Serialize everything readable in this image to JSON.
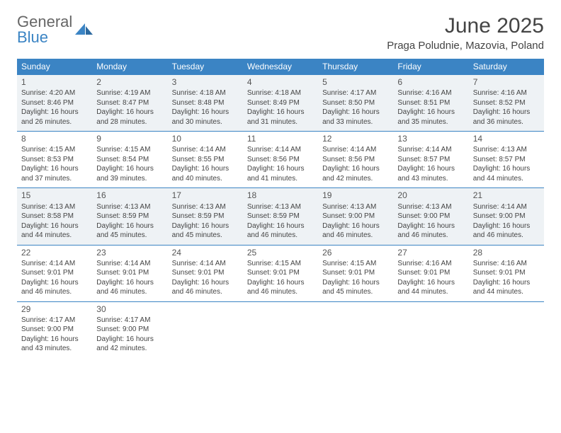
{
  "logo": {
    "line1": "General",
    "line2": "Blue"
  },
  "title": "June 2025",
  "location": "Praga Poludnie, Mazovia, Poland",
  "colors": {
    "header_bg": "#3b84c4",
    "header_text": "#ffffff",
    "row_border": "#3b84c4",
    "shaded_bg": "#eef2f5",
    "body_text": "#444444",
    "logo_gray": "#666666",
    "logo_blue": "#3b84c4"
  },
  "weekdays": [
    "Sunday",
    "Monday",
    "Tuesday",
    "Wednesday",
    "Thursday",
    "Friday",
    "Saturday"
  ],
  "weeks": [
    {
      "shaded": true,
      "days": [
        {
          "n": "1",
          "sr": "4:20 AM",
          "ss": "8:46 PM",
          "dl": "16 hours and 26 minutes."
        },
        {
          "n": "2",
          "sr": "4:19 AM",
          "ss": "8:47 PM",
          "dl": "16 hours and 28 minutes."
        },
        {
          "n": "3",
          "sr": "4:18 AM",
          "ss": "8:48 PM",
          "dl": "16 hours and 30 minutes."
        },
        {
          "n": "4",
          "sr": "4:18 AM",
          "ss": "8:49 PM",
          "dl": "16 hours and 31 minutes."
        },
        {
          "n": "5",
          "sr": "4:17 AM",
          "ss": "8:50 PM",
          "dl": "16 hours and 33 minutes."
        },
        {
          "n": "6",
          "sr": "4:16 AM",
          "ss": "8:51 PM",
          "dl": "16 hours and 35 minutes."
        },
        {
          "n": "7",
          "sr": "4:16 AM",
          "ss": "8:52 PM",
          "dl": "16 hours and 36 minutes."
        }
      ]
    },
    {
      "shaded": false,
      "days": [
        {
          "n": "8",
          "sr": "4:15 AM",
          "ss": "8:53 PM",
          "dl": "16 hours and 37 minutes."
        },
        {
          "n": "9",
          "sr": "4:15 AM",
          "ss": "8:54 PM",
          "dl": "16 hours and 39 minutes."
        },
        {
          "n": "10",
          "sr": "4:14 AM",
          "ss": "8:55 PM",
          "dl": "16 hours and 40 minutes."
        },
        {
          "n": "11",
          "sr": "4:14 AM",
          "ss": "8:56 PM",
          "dl": "16 hours and 41 minutes."
        },
        {
          "n": "12",
          "sr": "4:14 AM",
          "ss": "8:56 PM",
          "dl": "16 hours and 42 minutes."
        },
        {
          "n": "13",
          "sr": "4:14 AM",
          "ss": "8:57 PM",
          "dl": "16 hours and 43 minutes."
        },
        {
          "n": "14",
          "sr": "4:13 AM",
          "ss": "8:57 PM",
          "dl": "16 hours and 44 minutes."
        }
      ]
    },
    {
      "shaded": true,
      "days": [
        {
          "n": "15",
          "sr": "4:13 AM",
          "ss": "8:58 PM",
          "dl": "16 hours and 44 minutes."
        },
        {
          "n": "16",
          "sr": "4:13 AM",
          "ss": "8:59 PM",
          "dl": "16 hours and 45 minutes."
        },
        {
          "n": "17",
          "sr": "4:13 AM",
          "ss": "8:59 PM",
          "dl": "16 hours and 45 minutes."
        },
        {
          "n": "18",
          "sr": "4:13 AM",
          "ss": "8:59 PM",
          "dl": "16 hours and 46 minutes."
        },
        {
          "n": "19",
          "sr": "4:13 AM",
          "ss": "9:00 PM",
          "dl": "16 hours and 46 minutes."
        },
        {
          "n": "20",
          "sr": "4:13 AM",
          "ss": "9:00 PM",
          "dl": "16 hours and 46 minutes."
        },
        {
          "n": "21",
          "sr": "4:14 AM",
          "ss": "9:00 PM",
          "dl": "16 hours and 46 minutes."
        }
      ]
    },
    {
      "shaded": false,
      "days": [
        {
          "n": "22",
          "sr": "4:14 AM",
          "ss": "9:01 PM",
          "dl": "16 hours and 46 minutes."
        },
        {
          "n": "23",
          "sr": "4:14 AM",
          "ss": "9:01 PM",
          "dl": "16 hours and 46 minutes."
        },
        {
          "n": "24",
          "sr": "4:14 AM",
          "ss": "9:01 PM",
          "dl": "16 hours and 46 minutes."
        },
        {
          "n": "25",
          "sr": "4:15 AM",
          "ss": "9:01 PM",
          "dl": "16 hours and 46 minutes."
        },
        {
          "n": "26",
          "sr": "4:15 AM",
          "ss": "9:01 PM",
          "dl": "16 hours and 45 minutes."
        },
        {
          "n": "27",
          "sr": "4:16 AM",
          "ss": "9:01 PM",
          "dl": "16 hours and 44 minutes."
        },
        {
          "n": "28",
          "sr": "4:16 AM",
          "ss": "9:01 PM",
          "dl": "16 hours and 44 minutes."
        }
      ]
    },
    {
      "shaded": false,
      "days": [
        {
          "n": "29",
          "sr": "4:17 AM",
          "ss": "9:00 PM",
          "dl": "16 hours and 43 minutes."
        },
        {
          "n": "30",
          "sr": "4:17 AM",
          "ss": "9:00 PM",
          "dl": "16 hours and 42 minutes."
        },
        null,
        null,
        null,
        null,
        null
      ]
    }
  ],
  "labels": {
    "sunrise": "Sunrise: ",
    "sunset": "Sunset: ",
    "daylight": "Daylight: "
  }
}
